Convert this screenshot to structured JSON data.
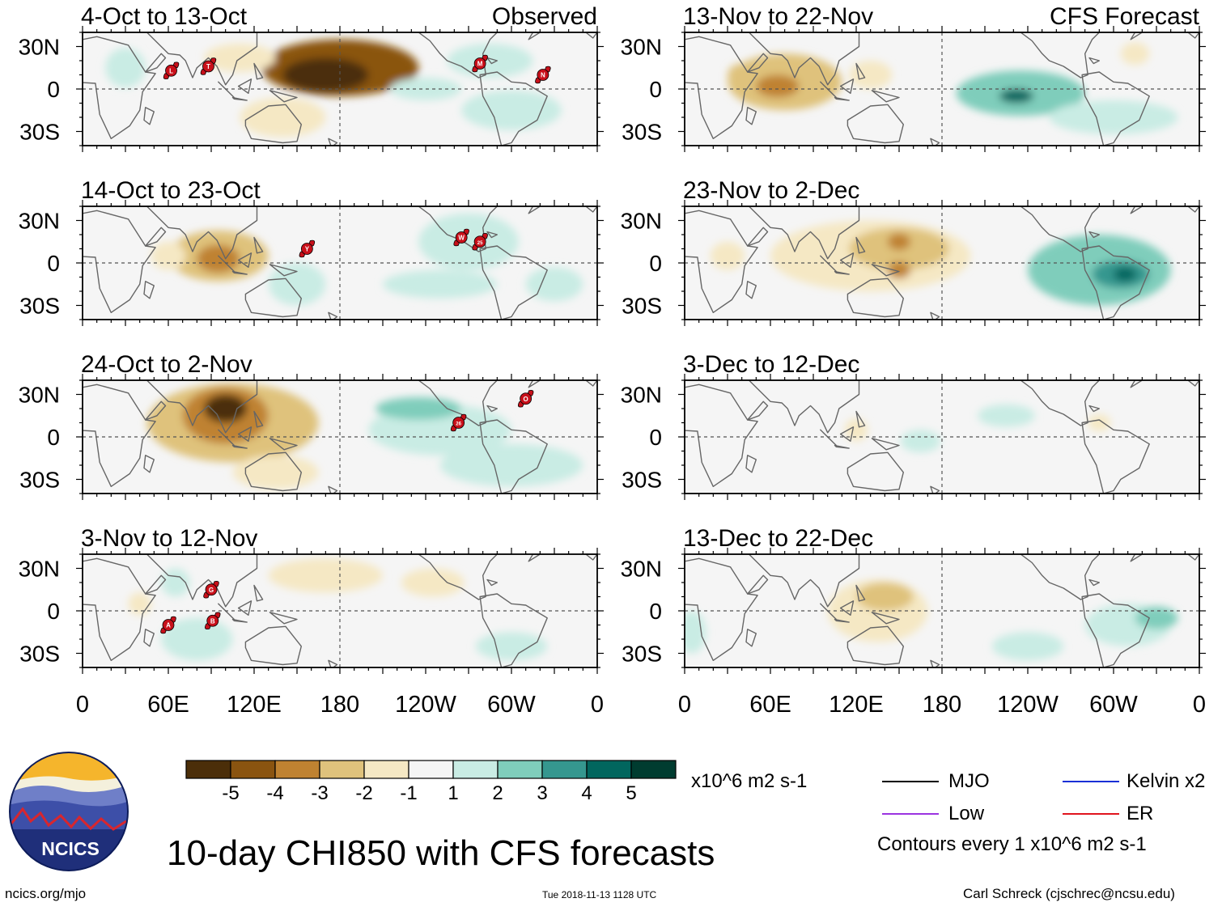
{
  "panels": [
    {
      "title": "4-Oct to 13-Oct",
      "tag": "Observed",
      "blobs": [
        {
          "c": [
            180,
            15
          ],
          "r": [
            55,
            20
          ],
          "v": -4.6
        },
        {
          "c": [
            170,
            10
          ],
          "r": [
            30,
            12
          ],
          "v": -5.4
        },
        {
          "c": [
            110,
            22
          ],
          "r": [
            25,
            10
          ],
          "v": -1.8
        },
        {
          "c": [
            140,
            -20
          ],
          "r": [
            30,
            14
          ],
          "v": -1.6
        },
        {
          "c": [
            30,
            15
          ],
          "r": [
            14,
            14
          ],
          "v": 1.4
        },
        {
          "c": [
            240,
            0
          ],
          "r": [
            25,
            8
          ],
          "v": 1.6
        },
        {
          "c": [
            285,
            20
          ],
          "r": [
            30,
            12
          ],
          "v": 1.5
        },
        {
          "c": [
            300,
            -15
          ],
          "r": [
            35,
            14
          ],
          "v": 1.3
        }
      ],
      "storms": [
        {
          "lon": 62,
          "lat": 13,
          "label": "L"
        },
        {
          "lon": 88,
          "lat": 16,
          "label": "T"
        },
        {
          "lon": 278,
          "lat": 18,
          "label": "M"
        },
        {
          "lon": 322,
          "lat": 10,
          "label": "N"
        }
      ]
    },
    {
      "title": "13-Nov to 22-Nov",
      "tag": "CFS Forecast",
      "blobs": [
        {
          "c": [
            70,
            5
          ],
          "r": [
            40,
            20
          ],
          "v": -2.3
        },
        {
          "c": [
            65,
            2
          ],
          "r": [
            15,
            8
          ],
          "v": -3.2
        },
        {
          "c": [
            40,
            10
          ],
          "r": [
            10,
            8
          ],
          "v": -2.8
        },
        {
          "c": [
            130,
            10
          ],
          "r": [
            15,
            10
          ],
          "v": -1.3
        },
        {
          "c": [
            235,
            -3
          ],
          "r": [
            45,
            16
          ],
          "v": 2.2
        },
        {
          "c": [
            232,
            -5
          ],
          "r": [
            12,
            5
          ],
          "v": 4.2
        },
        {
          "c": [
            300,
            -20
          ],
          "r": [
            45,
            12
          ],
          "v": 1.2
        },
        {
          "c": [
            315,
            25
          ],
          "r": [
            10,
            8
          ],
          "v": -1.2
        }
      ],
      "storms": []
    },
    {
      "title": "14-Oct to 23-Oct",
      "tag": "",
      "blobs": [
        {
          "c": [
            95,
            5
          ],
          "r": [
            35,
            18
          ],
          "v": -2.4
        },
        {
          "c": [
            95,
            3
          ],
          "r": [
            15,
            10
          ],
          "v": -3.4
        },
        {
          "c": [
            60,
            5
          ],
          "r": [
            12,
            10
          ],
          "v": -1.2
        },
        {
          "c": [
            150,
            -15
          ],
          "r": [
            20,
            15
          ],
          "v": 1.3
        },
        {
          "c": [
            270,
            15
          ],
          "r": [
            35,
            20
          ],
          "v": 1.5
        },
        {
          "c": [
            250,
            -15
          ],
          "r": [
            40,
            10
          ],
          "v": 1.2
        },
        {
          "c": [
            330,
            -15
          ],
          "r": [
            20,
            12
          ],
          "v": 1.2
        }
      ],
      "storms": [
        {
          "lon": 157,
          "lat": 10,
          "label": "Y"
        },
        {
          "lon": 265,
          "lat": 18,
          "label": "W"
        },
        {
          "lon": 278,
          "lat": 15,
          "label": "25"
        }
      ]
    },
    {
      "title": "23-Nov to 2-Dec",
      "tag": "",
      "blobs": [
        {
          "c": [
            130,
            5
          ],
          "r": [
            70,
            25
          ],
          "v": -1.7
        },
        {
          "c": [
            150,
            10
          ],
          "r": [
            35,
            15
          ],
          "v": -2.2
        },
        {
          "c": [
            150,
            15
          ],
          "r": [
            8,
            6
          ],
          "v": -3.3
        },
        {
          "c": [
            150,
            -5
          ],
          "r": [
            8,
            6
          ],
          "v": -3.3
        },
        {
          "c": [
            30,
            5
          ],
          "r": [
            12,
            10
          ],
          "v": -1.4
        },
        {
          "c": [
            290,
            -5
          ],
          "r": [
            50,
            25
          ],
          "v": 2.2
        },
        {
          "c": [
            305,
            -8
          ],
          "r": [
            20,
            10
          ],
          "v": 3.4
        },
        {
          "c": [
            308,
            -8
          ],
          "r": [
            8,
            5
          ],
          "v": 4.5
        }
      ],
      "storms": []
    },
    {
      "title": "24-Oct to 2-Nov",
      "tag": "",
      "blobs": [
        {
          "c": [
            105,
            10
          ],
          "r": [
            60,
            28
          ],
          "v": -2.5
        },
        {
          "c": [
            100,
            15
          ],
          "r": [
            30,
            20
          ],
          "v": -3.5
        },
        {
          "c": [
            100,
            20
          ],
          "r": [
            15,
            10
          ],
          "v": -5.3
        },
        {
          "c": [
            135,
            -25
          ],
          "r": [
            30,
            12
          ],
          "v": -1.4
        },
        {
          "c": [
            250,
            5
          ],
          "r": [
            50,
            18
          ],
          "v": 1.8
        },
        {
          "c": [
            235,
            20
          ],
          "r": [
            30,
            8
          ],
          "v": 2.2
        },
        {
          "c": [
            300,
            -20
          ],
          "r": [
            50,
            15
          ],
          "v": 1.4
        }
      ],
      "storms": [
        {
          "lon": 263,
          "lat": 10,
          "label": "26"
        },
        {
          "lon": 310,
          "lat": 27,
          "label": "O"
        }
      ]
    },
    {
      "title": "3-Dec to 12-Dec",
      "tag": "",
      "blobs": [
        {
          "c": [
            120,
            5
          ],
          "r": [
            8,
            8
          ],
          "v": -1.3
        },
        {
          "c": [
            165,
            -3
          ],
          "r": [
            14,
            8
          ],
          "v": 1.3
        },
        {
          "c": [
            225,
            15
          ],
          "r": [
            20,
            8
          ],
          "v": 1.2
        },
        {
          "c": [
            290,
            10
          ],
          "r": [
            8,
            6
          ],
          "v": -1.2
        }
      ],
      "storms": []
    },
    {
      "title": "3-Nov to 12-Nov",
      "tag": "",
      "blobs": [
        {
          "c": [
            170,
            25
          ],
          "r": [
            40,
            12
          ],
          "v": -1.4
        },
        {
          "c": [
            245,
            20
          ],
          "r": [
            22,
            10
          ],
          "v": -1.3
        },
        {
          "c": [
            40,
            5
          ],
          "r": [
            8,
            8
          ],
          "v": -1.2
        },
        {
          "c": [
            80,
            -20
          ],
          "r": [
            25,
            15
          ],
          "v": 1.3
        },
        {
          "c": [
            65,
            20
          ],
          "r": [
            10,
            10
          ],
          "v": 1.2
        },
        {
          "c": [
            300,
            -25
          ],
          "r": [
            25,
            10
          ],
          "v": 1.3
        }
      ],
      "storms": [
        {
          "lon": 60,
          "lat": -10,
          "label": "A"
        },
        {
          "lon": 90,
          "lat": 15,
          "label": "G"
        },
        {
          "lon": 91,
          "lat": -7,
          "label": "B"
        }
      ]
    },
    {
      "title": "13-Dec to 22-Dec",
      "tag": "",
      "blobs": [
        {
          "c": [
            135,
            0
          ],
          "r": [
            35,
            22
          ],
          "v": -1.6
        },
        {
          "c": [
            140,
            10
          ],
          "r": [
            20,
            10
          ],
          "v": -2.4
        },
        {
          "c": [
            310,
            -10
          ],
          "r": [
            30,
            15
          ],
          "v": 1.4
        },
        {
          "c": [
            330,
            -5
          ],
          "r": [
            15,
            8
          ],
          "v": 2.2
        },
        {
          "c": [
            5,
            -15
          ],
          "r": [
            10,
            15
          ],
          "v": 1.2
        },
        {
          "c": [
            240,
            -25
          ],
          "r": [
            25,
            10
          ],
          "v": 1.2
        }
      ],
      "storms": []
    }
  ],
  "axes": {
    "y_ticks": [
      {
        "label": "30N",
        "lat": 30
      },
      {
        "label": "0",
        "lat": 0
      },
      {
        "label": "30S",
        "lat": -30
      }
    ],
    "x_ticks": [
      {
        "label": "0",
        "lon": 0
      },
      {
        "label": "60E",
        "lon": 60
      },
      {
        "label": "120E",
        "lon": 120
      },
      {
        "label": "180",
        "lon": 180
      },
      {
        "label": "120W",
        "lon": 240
      },
      {
        "label": "60W",
        "lon": 300
      },
      {
        "label": "0",
        "lon": 360
      }
    ],
    "lat_range": [
      -40,
      40
    ],
    "lon_range": [
      0,
      360
    ]
  },
  "colorbar": {
    "labels": [
      "-5",
      "-4",
      "-3",
      "-2",
      "-1",
      "1",
      "2",
      "3",
      "4",
      "5"
    ],
    "colors": [
      "#4b2e09",
      "#8a5410",
      "#bf8231",
      "#dfc27c",
      "#f5e8c4",
      "#f5f5f5",
      "#c9ece4",
      "#7fcdbb",
      "#35978f",
      "#01665e",
      "#003c30"
    ],
    "units": "x10^6 m2 s-1"
  },
  "legend": {
    "items": [
      {
        "label": "MJO",
        "color": "#000000"
      },
      {
        "label": "Kelvin x2",
        "color": "#1a2fd6"
      },
      {
        "label": "Low",
        "color": "#9b33e0"
      },
      {
        "label": "ER",
        "color": "#e0141e"
      }
    ],
    "contours_note": "Contours every 1 x10^6 m2 s-1"
  },
  "logo": {
    "text": "NCICS"
  },
  "title": "10-day CHI850 with CFS forecasts",
  "footer": {
    "url": "ncics.org/mjo",
    "timestamp": "Tue 2018-11-13 1128 UTC",
    "credit": "Carl Schreck (cjschrec@ncsu.edu)"
  }
}
